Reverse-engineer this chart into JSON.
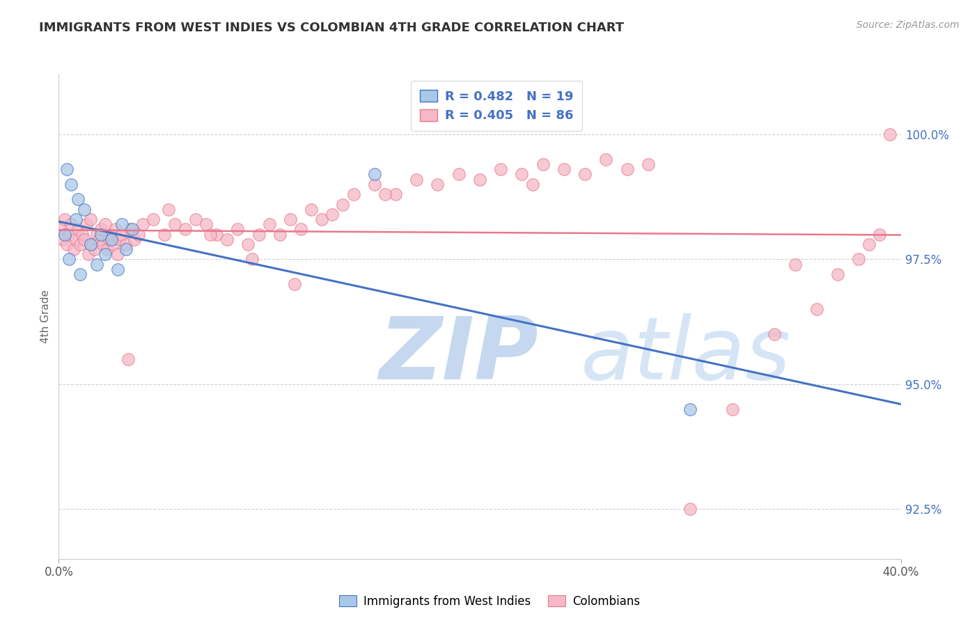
{
  "title": "IMMIGRANTS FROM WEST INDIES VS COLOMBIAN 4TH GRADE CORRELATION CHART",
  "source": "Source: ZipAtlas.com",
  "ylabel": "4th Grade",
  "ytick_values": [
    92.5,
    95.0,
    97.5,
    100.0
  ],
  "xlim": [
    0.0,
    40.0
  ],
  "ylim": [
    91.5,
    101.2
  ],
  "blue_label": "Immigrants from West Indies",
  "pink_label": "Colombians",
  "blue_R": 0.482,
  "blue_N": 19,
  "pink_R": 0.405,
  "pink_N": 86,
  "blue_color": "#a8c8e8",
  "pink_color": "#f5b8c8",
  "blue_line_color": "#4472c4",
  "pink_line_color": "#e8788a",
  "tick_label_color": "#4472c4",
  "grid_color": "#d0d0d0",
  "watermark_ZIP_color": "#c8dff5",
  "watermark_atlas_color": "#d8e8f5",
  "blue_scatter_x": [
    0.3,
    0.5,
    0.8,
    1.0,
    1.2,
    1.5,
    1.8,
    2.0,
    2.2,
    2.5,
    2.8,
    3.0,
    3.2,
    3.5,
    0.4,
    0.6,
    0.9,
    15.0,
    30.0
  ],
  "blue_scatter_y": [
    98.0,
    97.5,
    98.3,
    97.2,
    98.5,
    97.8,
    97.4,
    98.0,
    97.6,
    97.9,
    97.3,
    98.2,
    97.7,
    98.1,
    99.3,
    99.0,
    98.7,
    99.2,
    94.5
  ],
  "pink_scatter_x": [
    0.1,
    0.2,
    0.3,
    0.4,
    0.5,
    0.6,
    0.7,
    0.8,
    0.9,
    1.0,
    1.1,
    1.2,
    1.3,
    1.4,
    1.5,
    1.6,
    1.7,
    1.8,
    1.9,
    2.0,
    2.1,
    2.2,
    2.3,
    2.4,
    2.5,
    2.6,
    2.7,
    2.8,
    2.9,
    3.0,
    3.2,
    3.4,
    3.6,
    3.8,
    4.0,
    4.5,
    5.0,
    5.5,
    6.0,
    6.5,
    7.0,
    7.5,
    8.0,
    8.5,
    9.0,
    9.5,
    10.0,
    10.5,
    11.0,
    11.5,
    12.0,
    12.5,
    13.0,
    13.5,
    14.0,
    15.0,
    16.0,
    17.0,
    18.0,
    19.0,
    20.0,
    21.0,
    22.0,
    22.5,
    23.0,
    24.0,
    25.0,
    26.0,
    27.0,
    28.0,
    30.0,
    32.0,
    34.0,
    35.0,
    36.0,
    37.0,
    38.0,
    38.5,
    39.0,
    39.5,
    5.2,
    7.2,
    9.2,
    3.3,
    11.2,
    15.5
  ],
  "pink_scatter_y": [
    98.1,
    97.9,
    98.3,
    97.8,
    98.0,
    98.2,
    97.7,
    97.9,
    98.1,
    97.8,
    98.0,
    97.9,
    98.2,
    97.6,
    98.3,
    97.8,
    97.7,
    98.0,
    97.9,
    98.1,
    97.8,
    98.2,
    97.7,
    97.9,
    98.0,
    97.8,
    98.1,
    97.6,
    97.9,
    98.0,
    97.8,
    98.1,
    97.9,
    98.0,
    98.2,
    98.3,
    98.0,
    98.2,
    98.1,
    98.3,
    98.2,
    98.0,
    97.9,
    98.1,
    97.8,
    98.0,
    98.2,
    98.0,
    98.3,
    98.1,
    98.5,
    98.3,
    98.4,
    98.6,
    98.8,
    99.0,
    98.8,
    99.1,
    99.0,
    99.2,
    99.1,
    99.3,
    99.2,
    99.0,
    99.4,
    99.3,
    99.2,
    99.5,
    99.3,
    99.4,
    92.5,
    94.5,
    96.0,
    97.4,
    96.5,
    97.2,
    97.5,
    97.8,
    98.0,
    100.0,
    98.5,
    98.0,
    97.5,
    95.5,
    97.0,
    98.8
  ]
}
